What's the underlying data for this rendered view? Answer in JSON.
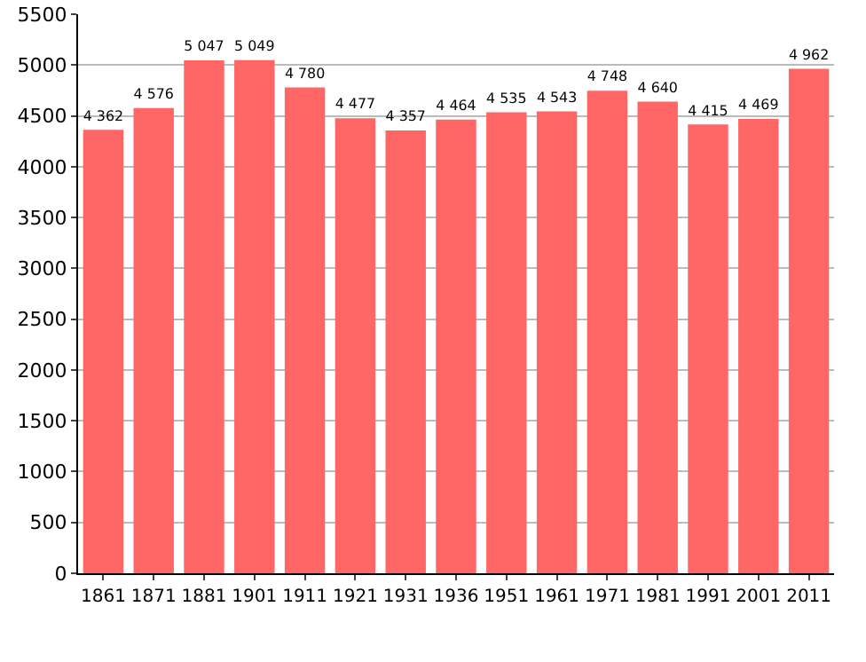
{
  "chart_data": {
    "type": "bar",
    "categories": [
      "1861",
      "1871",
      "1881",
      "1901",
      "1911",
      "1921",
      "1931",
      "1936",
      "1951",
      "1961",
      "1971",
      "1981",
      "1991",
      "2001",
      "2011"
    ],
    "values": [
      4362,
      4576,
      5047,
      5049,
      4780,
      4477,
      4357,
      4464,
      4535,
      4543,
      4748,
      4640,
      4415,
      4469,
      4962
    ],
    "value_labels": [
      "4 362",
      "4 576",
      "5 047",
      "5 049",
      "4 780",
      "4 477",
      "4 357",
      "4 464",
      "4 535",
      "4 543",
      "4 748",
      "4 640",
      "4 415",
      "4 469",
      "4 962"
    ],
    "color": "#ff6666",
    "ylim": [
      0,
      5500
    ],
    "yticks": [
      0,
      500,
      1000,
      1500,
      2000,
      2500,
      3000,
      3500,
      4000,
      4500,
      5000,
      5500
    ],
    "grid": "y"
  }
}
